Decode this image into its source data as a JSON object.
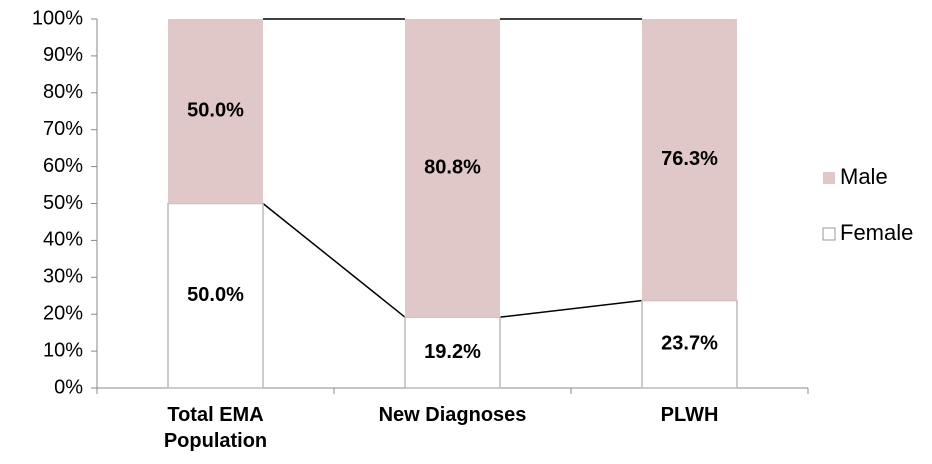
{
  "chart_data": {
    "type": "stacked-bar",
    "categories": [
      "Total EMA Population",
      "New Diagnoses",
      "PLWH"
    ],
    "series": [
      {
        "name": "Female",
        "color": "#ffffff",
        "values": [
          50.0,
          19.2,
          23.7
        ],
        "value_labels": [
          "50.0%",
          "19.2%",
          "23.7%"
        ]
      },
      {
        "name": "Male",
        "color": "#e0c8c8",
        "values": [
          50.0,
          80.8,
          76.3
        ],
        "value_labels": [
          "50.0%",
          "80.8%",
          "76.3%"
        ]
      }
    ],
    "ylim": [
      0,
      100
    ],
    "yticks": [
      {
        "value": 0,
        "label": "0%"
      },
      {
        "value": 10,
        "label": "10%"
      },
      {
        "value": 20,
        "label": "20%"
      },
      {
        "value": 30,
        "label": "30%"
      },
      {
        "value": 40,
        "label": "40%"
      },
      {
        "value": 50,
        "label": "50%"
      },
      {
        "value": 60,
        "label": "60%"
      },
      {
        "value": 70,
        "label": "70%"
      },
      {
        "value": 80,
        "label": "80%"
      },
      {
        "value": 90,
        "label": "90%"
      },
      {
        "value": 100,
        "label": "100%"
      }
    ],
    "legend": "right",
    "series_lines": true
  }
}
